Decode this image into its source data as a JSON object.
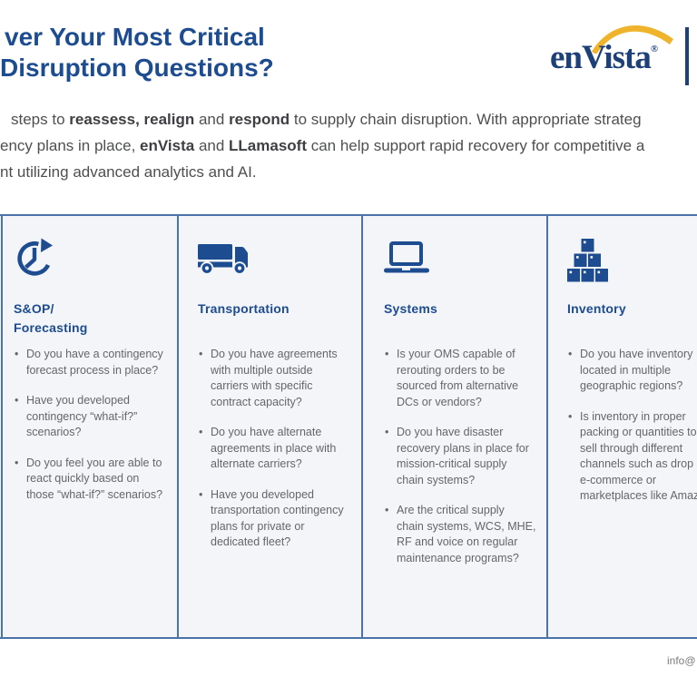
{
  "header": {
    "title_lines": [
      "ver Your Most Critical",
      "Disruption Questions?"
    ]
  },
  "logo": {
    "brand": "enVista",
    "registered_mark": "®"
  },
  "intro": {
    "line1_pre": "steps to ",
    "line1_bold1": "reassess, realign",
    "line1_mid": " and ",
    "line1_bold2": "respond",
    "line1_post": " to supply chain disruption. With appropriate strateg",
    "line2_pre": "ency plans in place, ",
    "line2_bold1": "enVista",
    "line2_mid": " and ",
    "line2_bold2": "LLamasoft",
    "line2_post": " can help support rapid recovery for competitive a",
    "line3": "nt utilizing advanced analytics and AI."
  },
  "columns": [
    {
      "icon": "clock-refresh-icon",
      "heading_lines": [
        "S&OP/",
        "Forecasting"
      ],
      "bullets": [
        {
          "lines": [
            "Do you have a contingency",
            "forecast process in place?"
          ]
        },
        {
          "lines": [
            "Have you developed",
            "contingency “what-if?”",
            "scenarios?"
          ]
        },
        {
          "lines": [
            "Do you feel you are able to",
            "react quickly based on",
            "those “what-if?” scenarios?"
          ]
        }
      ]
    },
    {
      "icon": "truck-icon",
      "heading_lines": [
        "Transportation"
      ],
      "bullets": [
        {
          "lines": [
            "Do you have agreements",
            "with multiple outside",
            "carriers with specific",
            "contract capacity?"
          ]
        },
        {
          "lines": [
            "Do you have alternate",
            "agreements in place with",
            "alternate carriers?"
          ]
        },
        {
          "lines": [
            "Have you developed",
            "transportation contingency",
            "plans for private or",
            "dedicated fleet?"
          ]
        }
      ]
    },
    {
      "icon": "laptop-icon",
      "heading_lines": [
        "Systems"
      ],
      "bullets": [
        {
          "lines": [
            "Is your OMS capable of",
            "rerouting orders to be",
            "sourced from alternative",
            "DCs or vendors?"
          ]
        },
        {
          "lines": [
            "Do you have disaster",
            "recovery plans in place for",
            "mission-critical supply",
            "chain systems?"
          ]
        },
        {
          "lines": [
            "Are the critical supply",
            "chain systems, WCS, MHE,",
            "RF and voice on regular",
            "maintenance programs?"
          ]
        }
      ]
    },
    {
      "icon": "boxes-icon",
      "heading_lines": [
        "Inventory"
      ],
      "bullets": [
        {
          "lines": [
            "Do you have inventory",
            "located in multiple",
            "geographic regions?"
          ]
        },
        {
          "lines": [
            "Is inventory in proper",
            "packing or quantities to",
            "sell through different",
            "channels such as drop shi",
            "e-commerce or",
            "marketplaces like Amazon"
          ]
        }
      ]
    }
  ],
  "footer": {
    "email_fragment": "info@"
  },
  "colors": {
    "navy": "#1d4c91",
    "logo_navy": "#1e4079",
    "gold": "#f0b32c",
    "border_blue": "#4a74a9",
    "cell_bg": "#f3f5f8",
    "body_gray": "#4e4f51",
    "bullet_gray": "#646669",
    "footer_gray": "#7a7b7e"
  }
}
